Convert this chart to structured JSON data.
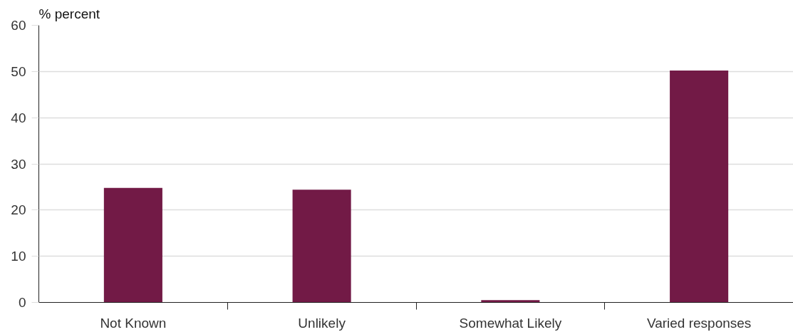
{
  "chart_data": {
    "type": "bar",
    "ylabel": "% percent",
    "categories": [
      "Not Known",
      "Unlikely",
      "Somewhat Likely",
      "Varied responses"
    ],
    "values": [
      24.8,
      24.4,
      0.5,
      50.2
    ],
    "color": "#721a46",
    "ylim": [
      0,
      60
    ],
    "yticks": [
      0,
      10,
      20,
      30,
      40,
      50,
      60
    ],
    "grid": "y"
  }
}
